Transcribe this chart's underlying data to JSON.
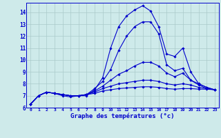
{
  "xlabel": "Graphe des températures (°c)",
  "background_color": "#ceeaea",
  "grid_color": "#aacaca",
  "line_color": "#0000cc",
  "x_hours": [
    0,
    1,
    2,
    3,
    4,
    5,
    6,
    7,
    8,
    9,
    10,
    11,
    12,
    13,
    14,
    15,
    16,
    17,
    18,
    19,
    20,
    21,
    22,
    23
  ],
  "ylim": [
    6.0,
    14.8
  ],
  "yticks": [
    6,
    7,
    8,
    9,
    10,
    11,
    12,
    13,
    14
  ],
  "series": [
    [
      6.3,
      7.0,
      7.3,
      7.2,
      7.0,
      6.9,
      7.0,
      7.0,
      7.5,
      8.5,
      11.0,
      12.8,
      13.7,
      14.2,
      14.55,
      14.1,
      12.8,
      10.5,
      10.3,
      11.0,
      9.0,
      8.0,
      7.7,
      7.5
    ],
    [
      6.3,
      7.0,
      7.3,
      7.2,
      7.1,
      7.0,
      7.0,
      7.1,
      7.6,
      8.2,
      9.2,
      10.8,
      12.0,
      12.8,
      13.2,
      13.2,
      12.2,
      9.6,
      9.1,
      9.3,
      8.3,
      7.9,
      7.6,
      7.5
    ],
    [
      6.3,
      7.0,
      7.3,
      7.2,
      7.1,
      7.0,
      7.0,
      7.1,
      7.4,
      7.8,
      8.3,
      8.8,
      9.1,
      9.5,
      9.8,
      9.8,
      9.5,
      8.9,
      8.6,
      8.9,
      8.3,
      8.0,
      7.7,
      7.5
    ],
    [
      6.3,
      7.0,
      7.3,
      7.2,
      7.1,
      7.0,
      7.0,
      7.1,
      7.3,
      7.6,
      7.8,
      8.0,
      8.1,
      8.2,
      8.3,
      8.3,
      8.2,
      8.0,
      7.9,
      8.0,
      7.9,
      7.7,
      7.6,
      7.5
    ],
    [
      6.3,
      7.0,
      7.3,
      7.2,
      7.1,
      7.0,
      7.0,
      7.1,
      7.2,
      7.4,
      7.5,
      7.6,
      7.65,
      7.7,
      7.75,
      7.75,
      7.7,
      7.6,
      7.55,
      7.6,
      7.6,
      7.55,
      7.55,
      7.5
    ]
  ]
}
